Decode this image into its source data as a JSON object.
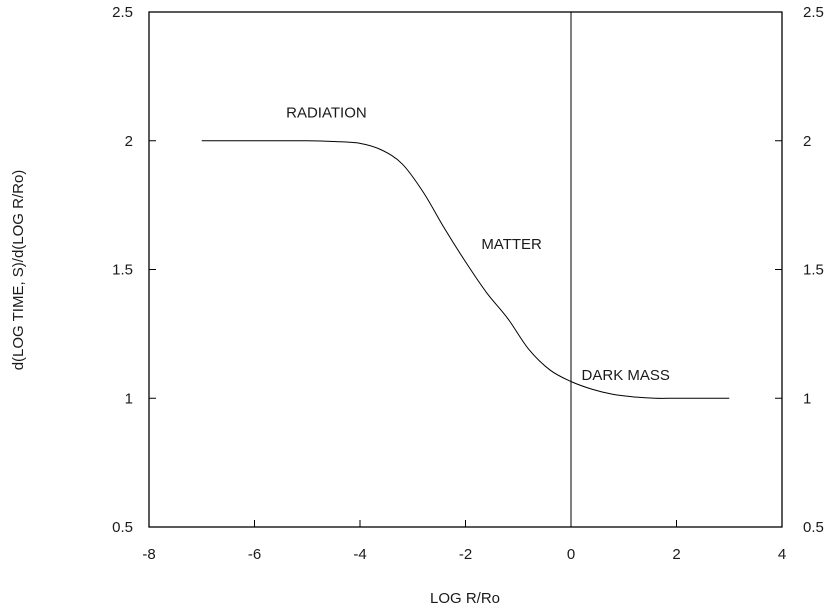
{
  "chart_data": {
    "type": "line",
    "xlabel": "LOG R/Ro",
    "ylabel": "d(LOG TIME, S)/d(LOG R/Ro)",
    "xlim": [
      -8,
      4
    ],
    "ylim": [
      0.5,
      2.5
    ],
    "x_ticks": [
      -8,
      -6,
      -4,
      -2,
      0,
      2,
      4
    ],
    "y_ticks": [
      0.5,
      1,
      1.5,
      2,
      2.5
    ],
    "y_ticks_right": [
      0.5,
      1,
      1.5,
      2,
      2.5
    ],
    "grid": false,
    "vertical_line_x": 0,
    "series": [
      {
        "x": [
          -7,
          -6,
          -5,
          -4.5,
          -4,
          -3.6,
          -3.2,
          -2.8,
          -2.4,
          -2.0,
          -1.6,
          -1.2,
          -0.8,
          -0.4,
          0,
          0.4,
          0.8,
          1.2,
          1.6,
          2.0,
          2.5,
          3.0
        ],
        "y": [
          2.0,
          2.0,
          2.0,
          1.997,
          1.99,
          1.965,
          1.91,
          1.8,
          1.66,
          1.53,
          1.41,
          1.31,
          1.19,
          1.11,
          1.065,
          1.035,
          1.015,
          1.005,
          1.0,
          1.0,
          1.0,
          1.0
        ]
      }
    ],
    "annotations": [
      {
        "text": "RADIATION",
        "x": -5.4,
        "y": 2.09
      },
      {
        "text": "MATTER",
        "x": -1.7,
        "y": 1.58
      },
      {
        "text": "DARK MASS",
        "x": 0.2,
        "y": 1.07
      }
    ]
  }
}
